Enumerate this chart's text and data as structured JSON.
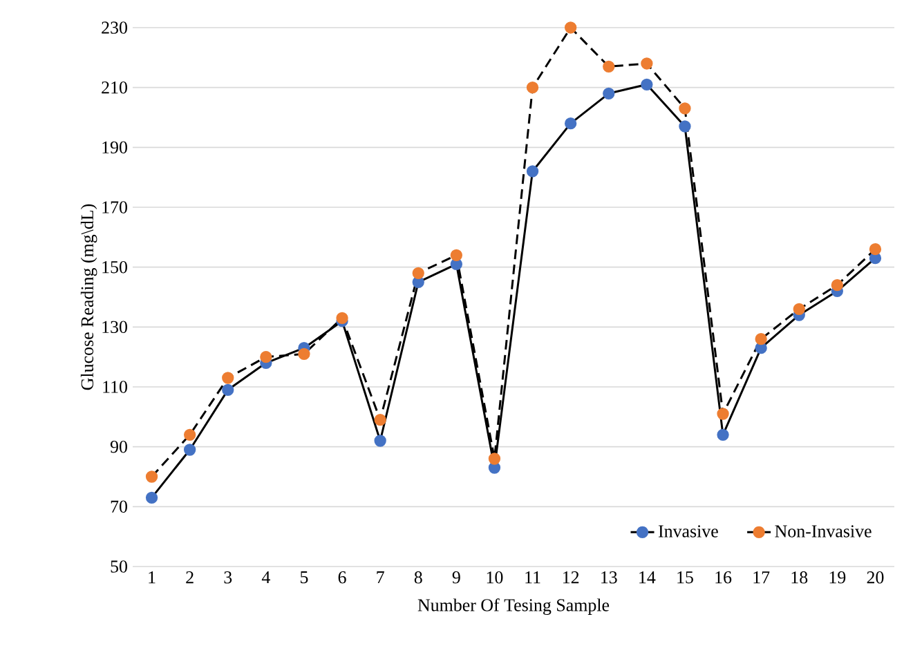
{
  "chart_data": {
    "type": "line",
    "xlabel": "Number Of Tesing Sample",
    "ylabel": "Glucose Reading (mg\\dL)",
    "categories": [
      "1",
      "2",
      "3",
      "4",
      "5",
      "6",
      "7",
      "8",
      "9",
      "10",
      "11",
      "12",
      "13",
      "14",
      "15",
      "16",
      "17",
      "18",
      "19",
      "20"
    ],
    "series": [
      {
        "name": "Invasive",
        "color": "#4472c4",
        "line_style": "solid",
        "values": [
          73,
          89,
          109,
          118,
          123,
          132,
          92,
          145,
          151,
          83,
          182,
          198,
          208,
          211,
          197,
          94,
          123,
          134,
          142,
          153
        ]
      },
      {
        "name": "Non-Invasive",
        "color": "#ed7d31",
        "line_style": "dashed",
        "values": [
          80,
          94,
          113,
          120,
          121,
          133,
          99,
          148,
          154,
          86,
          210,
          230,
          217,
          218,
          203,
          101,
          126,
          136,
          144,
          156
        ]
      }
    ],
    "ylim": [
      50,
      230
    ],
    "yticks": [
      50,
      70,
      90,
      110,
      130,
      150,
      170,
      190,
      210,
      230
    ],
    "grid": "y",
    "legend": "bottom right",
    "marker": "circle"
  }
}
